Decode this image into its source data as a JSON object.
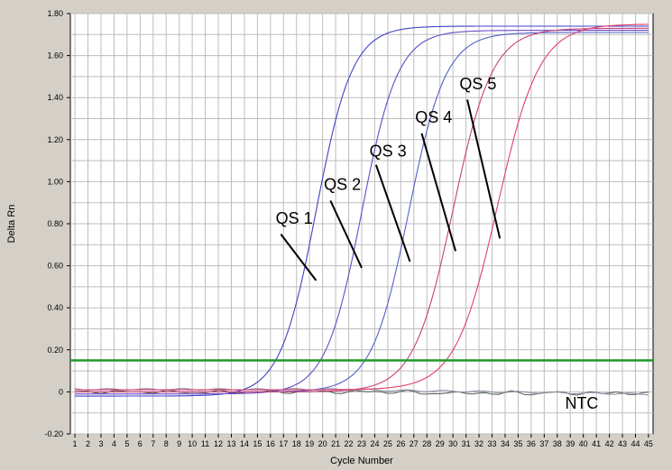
{
  "chart_data": {
    "type": "line",
    "title": "",
    "xlabel": "Cycle Number",
    "ylabel": "Delta Rn",
    "xlim": [
      1,
      45
    ],
    "ylim": [
      -0.2,
      1.8
    ],
    "x_ticks": [
      1,
      2,
      3,
      4,
      5,
      6,
      7,
      8,
      9,
      10,
      11,
      12,
      13,
      14,
      15,
      16,
      17,
      18,
      19,
      20,
      21,
      22,
      23,
      24,
      25,
      26,
      27,
      28,
      29,
      30,
      31,
      32,
      33,
      34,
      35,
      36,
      37,
      38,
      39,
      40,
      41,
      42,
      43,
      44,
      45
    ],
    "y_ticks": [
      -0.2,
      0,
      0.2,
      0.4,
      0.6,
      0.8,
      1.0,
      1.2,
      1.4,
      1.6,
      1.8
    ],
    "y_tick_labels": [
      "-0.20",
      "0",
      "0.20",
      "0.40",
      "0.60",
      "0.80",
      "1.00",
      "1.20",
      "1.40",
      "1.60",
      "1.80"
    ],
    "grid": true,
    "threshold": {
      "y": 0.15,
      "color": "#1f9a2a"
    },
    "series": [
      {
        "label": "QS 1",
        "color": "#3f44c8",
        "midpoint": 19.5,
        "slope": 0.72,
        "plateau": 1.74,
        "baseline": -0.02
      },
      {
        "label": "QS 2",
        "color": "#6a48c8",
        "midpoint": 23.0,
        "slope": 0.72,
        "plateau": 1.72,
        "baseline": -0.01
      },
      {
        "label": "QS 3",
        "color": "#5360c8",
        "midpoint": 26.6,
        "slope": 0.7,
        "plateau": 1.71,
        "baseline": 0.0
      },
      {
        "label": "QS 4",
        "color": "#c8407a",
        "midpoint": 30.0,
        "slope": 0.66,
        "plateau": 1.73,
        "baseline": 0.0
      },
      {
        "label": "QS 5",
        "color": "#e0406a",
        "midpoint": 33.4,
        "slope": 0.62,
        "plateau": 1.75,
        "baseline": 0.01
      }
    ],
    "ntc": {
      "label": "NTC",
      "color": "#4f5f4f"
    },
    "annotations": [
      {
        "text": "QS 1",
        "label_x": 16.4,
        "label_y": 0.8,
        "line_start": [
          16.8,
          0.75
        ],
        "line_end": [
          19.5,
          0.53
        ]
      },
      {
        "text": "QS 2",
        "label_x": 20.1,
        "label_y": 0.96,
        "line_start": [
          20.6,
          0.91
        ],
        "line_end": [
          23.0,
          0.59
        ]
      },
      {
        "text": "QS 3",
        "label_x": 23.6,
        "label_y": 1.12,
        "line_start": [
          24.1,
          1.08
        ],
        "line_end": [
          26.7,
          0.62
        ]
      },
      {
        "text": "QS 4",
        "label_x": 27.1,
        "label_y": 1.28,
        "line_start": [
          27.6,
          1.23
        ],
        "line_end": [
          30.2,
          0.67
        ]
      },
      {
        "text": "QS 5",
        "label_x": 30.5,
        "label_y": 1.44,
        "line_start": [
          31.1,
          1.39
        ],
        "line_end": [
          33.6,
          0.73
        ]
      }
    ]
  }
}
